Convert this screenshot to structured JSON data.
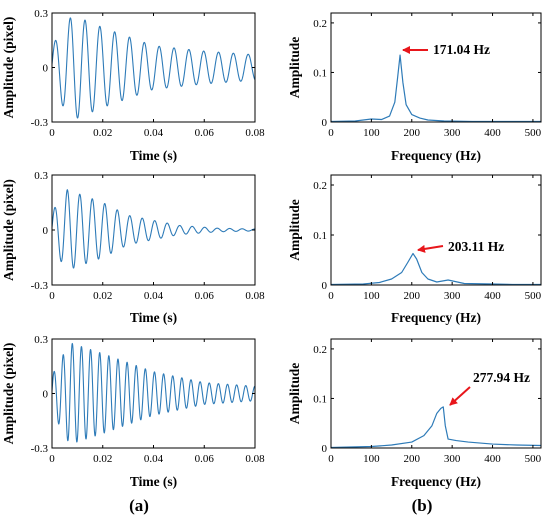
{
  "figure_labels": {
    "a": "(a)",
    "b": "(b)"
  },
  "colors": {
    "line": "#2e7bb8",
    "arrow": "#e8161b",
    "axis": "#000000"
  },
  "chart_data": [
    {
      "type": "line",
      "panel": "a1",
      "xlabel": "Time (s)",
      "ylabel": "Amplitude (pixel)",
      "xlim": [
        0,
        0.08
      ],
      "ylim": [
        -0.3,
        0.3
      ],
      "xticks": [
        "0",
        "0.02",
        "0.04",
        "0.06",
        "0.08"
      ],
      "yticks": [
        "-0.3",
        "0",
        "0.3"
      ],
      "signal": {
        "frequency_hz": 171.04,
        "amp_envelope": [
          [
            0,
            0.12
          ],
          [
            0.008,
            0.29
          ],
          [
            0.02,
            0.22
          ],
          [
            0.04,
            0.12
          ],
          [
            0.06,
            0.09
          ],
          [
            0.08,
            0.07
          ]
        ]
      }
    },
    {
      "type": "line",
      "panel": "a2",
      "xlabel": "Time (s)",
      "ylabel": "Amplitude (pixel)",
      "xlim": [
        0,
        0.08
      ],
      "ylim": [
        -0.3,
        0.3
      ],
      "xticks": [
        "0",
        "0.02",
        "0.04",
        "0.06",
        "0.08"
      ],
      "yticks": [
        "-0.3",
        "0",
        "0.3"
      ],
      "signal": {
        "frequency_hz": 203.11,
        "amp_envelope": [
          [
            0,
            0.1
          ],
          [
            0.006,
            0.22
          ],
          [
            0.02,
            0.15
          ],
          [
            0.03,
            0.08
          ],
          [
            0.05,
            0.025
          ],
          [
            0.065,
            0.01
          ],
          [
            0.08,
            0.005
          ]
        ]
      }
    },
    {
      "type": "line",
      "panel": "a3",
      "xlabel": "Time (s)",
      "ylabel": "Amplitude (pixel)",
      "xlim": [
        0,
        0.08
      ],
      "ylim": [
        -0.3,
        0.3
      ],
      "xticks": [
        "0",
        "0.02",
        "0.04",
        "0.06",
        "0.08"
      ],
      "yticks": [
        "-0.3",
        "0",
        "0.3"
      ],
      "signal": {
        "frequency_hz": 277.94,
        "amp_envelope": [
          [
            0,
            0.1
          ],
          [
            0.007,
            0.28
          ],
          [
            0.02,
            0.22
          ],
          [
            0.04,
            0.12
          ],
          [
            0.06,
            0.06
          ],
          [
            0.08,
            0.04
          ]
        ]
      }
    },
    {
      "type": "line",
      "panel": "b1",
      "xlabel": "Frequency (Hz)",
      "ylabel": "Amplitude",
      "xlim": [
        0,
        520
      ],
      "ylim": [
        0,
        0.22
      ],
      "xticks": [
        "0",
        "100",
        "200",
        "300",
        "400",
        "500"
      ],
      "yticks": [
        "0",
        "0.1",
        "0.2"
      ],
      "peak_label": "171.04 Hz",
      "peak": [
        171.04,
        0.135
      ],
      "points": [
        [
          0,
          0.001
        ],
        [
          60,
          0.002
        ],
        [
          100,
          0.006
        ],
        [
          125,
          0.005
        ],
        [
          145,
          0.012
        ],
        [
          158,
          0.04
        ],
        [
          165,
          0.09
        ],
        [
          171,
          0.135
        ],
        [
          178,
          0.08
        ],
        [
          186,
          0.035
        ],
        [
          200,
          0.015
        ],
        [
          220,
          0.008
        ],
        [
          240,
          0.004
        ],
        [
          280,
          0.002
        ],
        [
          350,
          0.001
        ],
        [
          450,
          0.001
        ],
        [
          520,
          0.001
        ]
      ]
    },
    {
      "type": "line",
      "panel": "b2",
      "xlabel": "Frequency (Hz)",
      "ylabel": "Amplitude",
      "xlim": [
        0,
        520
      ],
      "ylim": [
        0,
        0.22
      ],
      "xticks": [
        "0",
        "100",
        "200",
        "300",
        "400",
        "500"
      ],
      "yticks": [
        "0",
        "0.1",
        "0.2"
      ],
      "peak_label": "203.11 Hz",
      "peak": [
        203.11,
        0.063
      ],
      "points": [
        [
          0,
          0.001
        ],
        [
          80,
          0.002
        ],
        [
          120,
          0.005
        ],
        [
          150,
          0.012
        ],
        [
          175,
          0.025
        ],
        [
          190,
          0.045
        ],
        [
          203,
          0.063
        ],
        [
          212,
          0.052
        ],
        [
          225,
          0.025
        ],
        [
          240,
          0.012
        ],
        [
          262,
          0.006
        ],
        [
          290,
          0.01
        ],
        [
          330,
          0.003
        ],
        [
          400,
          0.002
        ],
        [
          450,
          0.001
        ],
        [
          520,
          0.001
        ]
      ]
    },
    {
      "type": "line",
      "panel": "b3",
      "xlabel": "Frequency (Hz)",
      "ylabel": "Amplitude",
      "xlim": [
        0,
        520
      ],
      "ylim": [
        0,
        0.22
      ],
      "xticks": [
        "0",
        "100",
        "200",
        "300",
        "400",
        "500"
      ],
      "yticks": [
        "0",
        "0.1",
        "0.2"
      ],
      "peak_label": "277.94 Hz",
      "peak": [
        277.94,
        0.083
      ],
      "points": [
        [
          0,
          0.001
        ],
        [
          100,
          0.003
        ],
        [
          150,
          0.006
        ],
        [
          200,
          0.012
        ],
        [
          230,
          0.025
        ],
        [
          250,
          0.045
        ],
        [
          262,
          0.07
        ],
        [
          272,
          0.08
        ],
        [
          278,
          0.083
        ],
        [
          283,
          0.045
        ],
        [
          290,
          0.018
        ],
        [
          310,
          0.015
        ],
        [
          340,
          0.012
        ],
        [
          400,
          0.008
        ],
        [
          460,
          0.006
        ],
        [
          520,
          0.005
        ]
      ]
    }
  ]
}
